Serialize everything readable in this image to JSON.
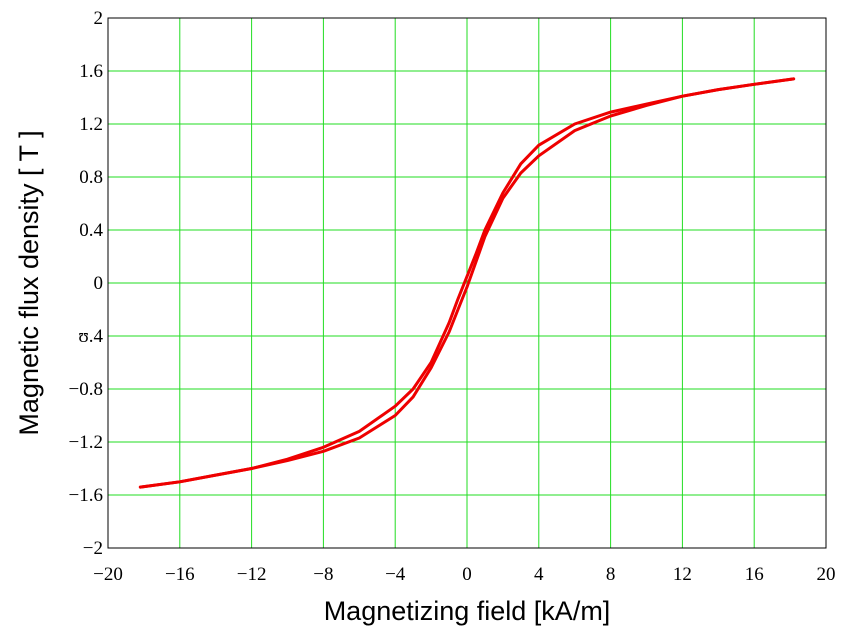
{
  "chart_data": {
    "type": "line",
    "title": "",
    "xlabel": "Magnetizing field [kA/m]",
    "ylabel": "Magnetic flux density [ T ]",
    "xlim": [
      -20,
      20
    ],
    "ylim": [
      -2,
      2
    ],
    "x_ticks": [
      -20,
      -16,
      -12,
      -8,
      -4,
      0,
      4,
      8,
      12,
      16,
      20
    ],
    "y_ticks": [
      2,
      1.6,
      1.2,
      0.8,
      0.4,
      0,
      -0.4,
      -0.8,
      -1.2,
      -1.6,
      -2
    ],
    "x_tick_labels": [
      "−20",
      "−16",
      "−12",
      "−8",
      "−4",
      "0",
      "4",
      "8",
      "12",
      "16",
      "20"
    ],
    "y_tick_labels": [
      "2",
      "1.6",
      "1.2",
      "0.8",
      "0.4",
      "0",
      "ʊ.4",
      "−0.8",
      "−1.2",
      "−1.6",
      "−2"
    ],
    "grid": true,
    "grid_color": "#22dd22",
    "series": [
      {
        "color": "#ee0000",
        "x": [
          -18.2,
          -16,
          -14,
          -12,
          -10,
          -8,
          -6,
          -4,
          -3,
          -2,
          -1,
          -0.5,
          0,
          0.5,
          1,
          2,
          3,
          4,
          6,
          8,
          10,
          12,
          14,
          16,
          18.2
        ],
        "y": [
          -1.54,
          -1.5,
          -1.45,
          -1.4,
          -1.33,
          -1.24,
          -1.12,
          -0.93,
          -0.8,
          -0.6,
          -0.3,
          -0.12,
          0.05,
          0.22,
          0.4,
          0.68,
          0.9,
          1.04,
          1.2,
          1.29,
          1.35,
          1.41,
          1.46,
          1.5,
          1.54
        ]
      },
      {
        "color": "#ee0000",
        "x": [
          18.2,
          16,
          14,
          12,
          10,
          8,
          6,
          4,
          3,
          2,
          1,
          0.5,
          0,
          -0.5,
          -1,
          -2,
          -3,
          -4,
          -6,
          -8,
          -10,
          -12,
          -14,
          -16,
          -18.2
        ],
        "y": [
          1.54,
          1.5,
          1.46,
          1.41,
          1.34,
          1.26,
          1.15,
          0.96,
          0.83,
          0.64,
          0.35,
          0.16,
          -0.03,
          -0.2,
          -0.37,
          -0.64,
          -0.86,
          -1.0,
          -1.17,
          -1.27,
          -1.34,
          -1.4,
          -1.45,
          -1.5,
          -1.54
        ]
      }
    ]
  }
}
